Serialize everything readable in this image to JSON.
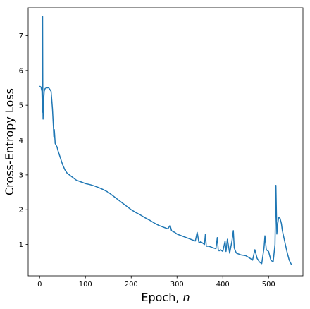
{
  "chart_data": {
    "type": "line",
    "title": "",
    "xlabel_text": "Epoch, ",
    "xlabel_var": "n",
    "ylabel": "Cross-Entropy Loss",
    "xlim": [
      -25,
      575
    ],
    "ylim": [
      0.1,
      7.8
    ],
    "xticks": [
      0,
      100,
      200,
      300,
      400,
      500
    ],
    "yticks": [
      1,
      2,
      3,
      4,
      5,
      6,
      7
    ],
    "grid": false,
    "line_color": "#1f77b4",
    "series": [
      {
        "x": [
          0,
          3,
          5,
          6,
          6.5,
          7,
          7.5,
          8,
          9,
          10,
          12,
          15,
          20,
          25,
          28,
          30,
          31,
          32,
          34,
          36,
          38,
          40,
          45,
          50,
          55,
          60,
          70,
          80,
          90,
          100,
          110,
          120,
          130,
          140,
          150,
          160,
          170,
          180,
          190,
          200,
          210,
          220,
          230,
          240,
          250,
          260,
          270,
          280,
          285,
          288,
          290,
          295,
          300,
          310,
          320,
          330,
          340,
          344,
          348,
          352,
          360,
          362,
          364,
          370,
          380,
          385,
          388,
          390,
          392,
          395,
          400,
          405,
          407,
          410,
          415,
          420,
          423,
          425,
          428,
          430,
          440,
          450,
          460,
          465,
          470,
          475,
          480,
          485,
          490,
          492,
          495,
          500,
          505,
          510,
          514,
          516,
          518,
          520,
          522,
          525,
          528,
          530,
          535,
          540,
          545,
          550
        ],
        "y": [
          5.55,
          5.52,
          5.4,
          4.8,
          7.55,
          5.2,
          4.6,
          4.9,
          5.2,
          5.4,
          5.48,
          5.5,
          5.5,
          5.4,
          4.9,
          4.4,
          4.1,
          4.3,
          3.9,
          3.85,
          3.8,
          3.7,
          3.5,
          3.3,
          3.15,
          3.05,
          2.95,
          2.85,
          2.8,
          2.75,
          2.72,
          2.68,
          2.63,
          2.57,
          2.5,
          2.4,
          2.3,
          2.2,
          2.1,
          2.0,
          1.92,
          1.85,
          1.77,
          1.7,
          1.62,
          1.55,
          1.5,
          1.45,
          1.55,
          1.4,
          1.38,
          1.35,
          1.3,
          1.25,
          1.2,
          1.15,
          1.1,
          1.35,
          1.05,
          1.08,
          1.0,
          1.3,
          0.95,
          0.95,
          0.9,
          0.88,
          1.2,
          0.85,
          0.82,
          0.85,
          0.8,
          1.1,
          0.8,
          1.15,
          0.75,
          1.1,
          1.4,
          0.9,
          0.8,
          0.75,
          0.7,
          0.68,
          0.6,
          0.55,
          0.85,
          0.6,
          0.5,
          0.45,
          0.9,
          1.25,
          0.85,
          0.8,
          0.55,
          0.5,
          1.0,
          2.7,
          1.3,
          1.6,
          1.78,
          1.75,
          1.6,
          1.4,
          1.1,
          0.8,
          0.55,
          0.42
        ]
      }
    ]
  }
}
